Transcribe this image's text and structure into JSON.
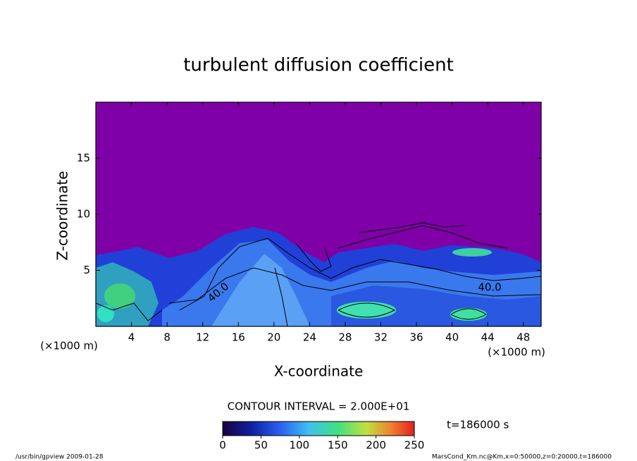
{
  "chart_data": {
    "type": "contour",
    "title": "turbulent diffusion coefficient",
    "xlabel": "X-coordinate",
    "ylabel": "Z-coordinate",
    "xunit": "(×1000 m)",
    "yunit": "(×1000 m)",
    "xlim": [
      0,
      50
    ],
    "xticks": [
      4,
      8,
      12,
      16,
      20,
      24,
      28,
      32,
      36,
      40,
      44,
      48
    ],
    "ylim": [
      0,
      20
    ],
    "yticks": [
      5,
      10,
      15
    ],
    "contour_interval": "CONTOUR INTERVAL = 2.000E+01",
    "contour_labels": [
      {
        "value": 40,
        "label": "40.0"
      },
      {
        "value": 40,
        "label": "40.0"
      }
    ],
    "colorbar_lim": [
      0,
      250
    ],
    "colorbar_ticks": [
      0,
      50,
      100,
      150,
      200,
      250
    ],
    "time_label": "t=186000 s",
    "footer_left": "/usr/bin/gpview   2009-01-28",
    "footer_right": "MarsCond_Km.nc@Km,x=0:50000,z=0:20000,t=186000"
  }
}
